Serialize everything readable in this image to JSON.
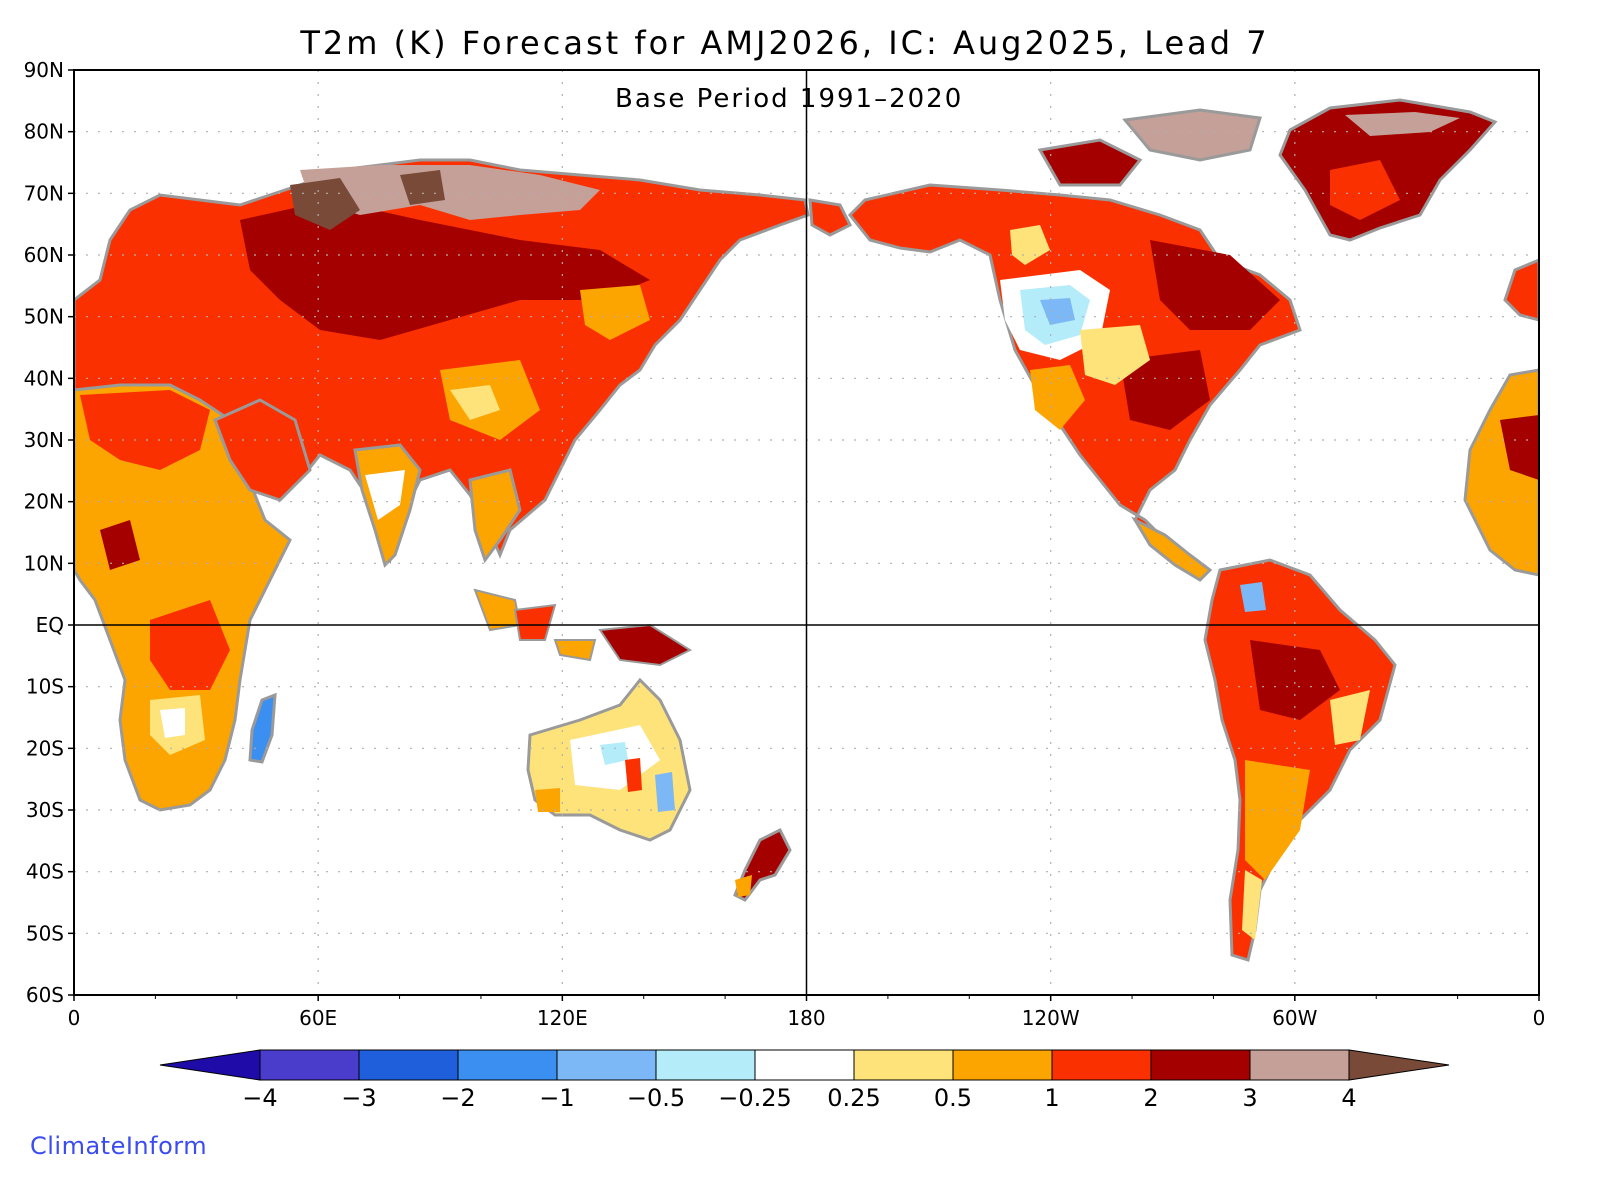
{
  "title": "T2m (K) Forecast for AMJ2026, IC: Aug2025, Lead 7",
  "subtitle": "Base Period 1991–2020",
  "credit": "ClimateInform",
  "map": {
    "lat_labels": [
      "90N",
      "80N",
      "70N",
      "60N",
      "50N",
      "40N",
      "30N",
      "20N",
      "10N",
      "EQ",
      "10S",
      "20S",
      "30S",
      "40S",
      "50S",
      "60S"
    ],
    "lon_labels": [
      "0",
      "60E",
      "120E",
      "180",
      "120W",
      "60W",
      "0"
    ],
    "gridline_style": "dotted",
    "equator_line": true,
    "dateline_line": true,
    "colors": {
      "land_outline": "#9a9a9a",
      "ocean": "#ffffff"
    }
  },
  "colorbar": {
    "ticks": [
      "−4",
      "−3",
      "−2",
      "−1",
      "−0.5",
      "−0.25",
      "0.25",
      "0.5",
      "1",
      "2",
      "3",
      "4"
    ],
    "low_arrow_color": "#1f0ca8",
    "high_arrow_color": "#7a4a38",
    "colors": [
      "#4a3dcc",
      "#1f5fdb",
      "#3b8ff0",
      "#7cb8f5",
      "#b5ecfa",
      "#ffffff",
      "#fde37a",
      "#fca400",
      "#fb3000",
      "#a40000",
      "#c4a098"
    ]
  }
}
